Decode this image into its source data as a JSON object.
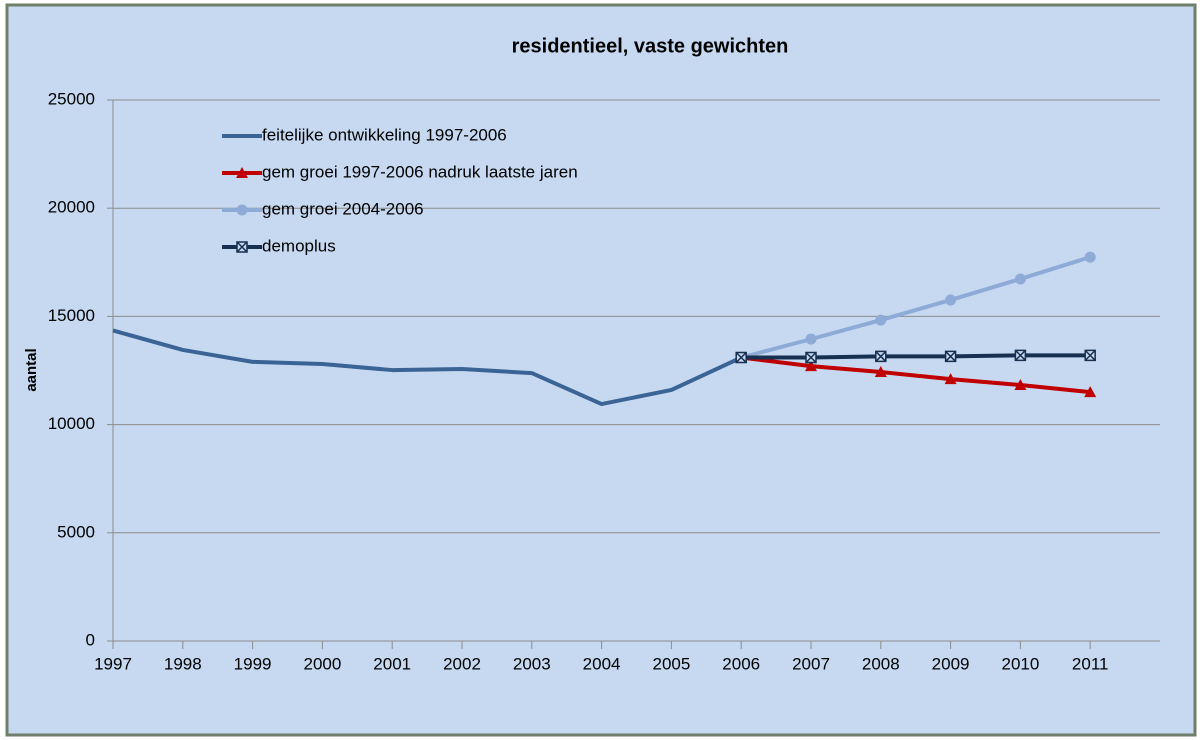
{
  "chart_data": {
    "type": "line",
    "title": "residentieel, vaste gewichten",
    "y_label": "aantal",
    "x": [
      1997,
      1998,
      1999,
      2000,
      2001,
      2002,
      2003,
      2004,
      2005,
      2006,
      2007,
      2008,
      2009,
      2010,
      2011
    ],
    "xlim": [
      1997,
      2012
    ],
    "xticks": [
      1997,
      1998,
      1999,
      2000,
      2001,
      2002,
      2003,
      2004,
      2005,
      2006,
      2007,
      2008,
      2009,
      2010,
      2011
    ],
    "ylim": [
      0,
      25000
    ],
    "yticks": [
      0,
      5000,
      10000,
      15000,
      20000,
      25000
    ],
    "grid": true,
    "legend": "top-left",
    "series": [
      {
        "name": "feitelijke ontwikkeling 1997-2006",
        "color": "#3b6496",
        "marker": "none",
        "values": [
          14350,
          13450,
          12900,
          12800,
          12520,
          12570,
          12380,
          10950,
          11600,
          13100,
          null,
          null,
          null,
          null,
          null
        ]
      },
      {
        "name": "gem groei 1997-2006 nadruk laatste jaren",
        "color": "#c00000",
        "marker": "triangle",
        "values": [
          null,
          null,
          null,
          null,
          null,
          null,
          null,
          null,
          null,
          13100,
          12700,
          12430,
          12100,
          11830,
          11500
        ]
      },
      {
        "name": "gem groei 2004-2006",
        "color": "#8eaad6",
        "marker": "circle",
        "values": [
          null,
          null,
          null,
          null,
          null,
          null,
          null,
          null,
          null,
          13100,
          13950,
          14830,
          15760,
          16730,
          17740
        ]
      },
      {
        "name": "demoplus",
        "color": "#17304f",
        "marker": "xsquare",
        "values": [
          null,
          null,
          null,
          null,
          null,
          null,
          null,
          null,
          null,
          13100,
          13100,
          13150,
          13150,
          13200,
          13200
        ]
      }
    ]
  }
}
